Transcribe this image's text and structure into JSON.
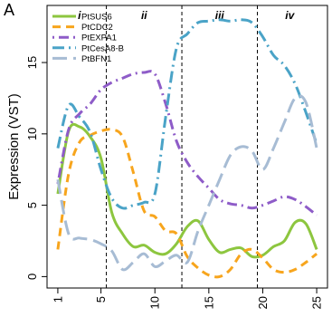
{
  "chart_data": {
    "type": "line",
    "panel_label": "A",
    "ylabel": "Expression (VST)",
    "xlim": [
      0,
      26
    ],
    "ylim": [
      -0.8,
      19
    ],
    "x_ticks": [
      1,
      5,
      10,
      15,
      20,
      25
    ],
    "y_ticks": [
      0,
      5,
      10,
      15
    ],
    "stage_boundaries": [
      5.5,
      12.5,
      19.5
    ],
    "stage_labels": [
      {
        "label": "i",
        "x": 3
      },
      {
        "label": "ii",
        "x": 9
      },
      {
        "label": "iii",
        "x": 16
      },
      {
        "label": "iv",
        "x": 22.5
      }
    ],
    "legend_position": "top-left",
    "x": [
      1,
      2,
      3,
      4,
      5,
      6,
      7,
      8,
      9,
      10,
      11,
      12,
      13,
      14,
      15,
      16,
      17,
      18,
      19,
      20,
      21,
      22,
      23,
      24,
      25
    ],
    "series": [
      {
        "name": "PtSUS6",
        "color": "#8dc63f",
        "dash": "solid",
        "values": [
          5.8,
          10.2,
          10.5,
          9.8,
          8.3,
          4.5,
          3.0,
          2.1,
          2.2,
          1.7,
          1.6,
          2.3,
          3.5,
          3.9,
          2.6,
          1.7,
          1.9,
          2.0,
          1.4,
          1.5,
          2.1,
          2.5,
          3.8,
          3.7,
          1.9
        ]
      },
      {
        "name": "PtCDC2",
        "color": "#f7a51d",
        "dash": "dashed",
        "values": [
          1.9,
          7.2,
          9.4,
          9.9,
          10.2,
          10.3,
          9.8,
          7.3,
          4.6,
          4.2,
          3.2,
          3.0,
          1.4,
          0.6,
          0.1,
          0.0,
          0.5,
          1.6,
          1.9,
          1.3,
          0.5,
          0.3,
          0.5,
          1.0,
          1.6
        ]
      },
      {
        "name": "PtEXPA1",
        "color": "#8e5cc8",
        "dash": "dotdash",
        "values": [
          6.5,
          10.3,
          11.4,
          12.1,
          13.1,
          13.6,
          13.9,
          14.2,
          14.3,
          14.2,
          12.1,
          9.5,
          8.0,
          7.0,
          6.2,
          5.4,
          5.1,
          5.0,
          4.8,
          5.0,
          5.3,
          5.6,
          5.4,
          4.9,
          4.3
        ]
      },
      {
        "name": "PtCesA8-B",
        "color": "#4aa3c7",
        "dash": "dashdot",
        "values": [
          9.0,
          12.0,
          11.2,
          10.1,
          7.5,
          5.5,
          4.8,
          5.0,
          5.2,
          5.8,
          11.2,
          16.0,
          17.0,
          17.8,
          17.9,
          18.0,
          17.9,
          18.0,
          17.8,
          16.8,
          15.5,
          14.8,
          13.5,
          11.5,
          9.3
        ]
      },
      {
        "name": "PtBFN1",
        "color": "#a7bcd4",
        "dash": "longdash",
        "values": [
          6.8,
          3.0,
          2.7,
          2.6,
          2.3,
          1.8,
          0.5,
          1.0,
          1.6,
          0.7,
          1.1,
          1.5,
          1.0,
          3.2,
          5.0,
          6.8,
          8.5,
          9.1,
          8.8,
          7.5,
          9.0,
          10.8,
          12.5,
          12.2,
          9.0
        ]
      }
    ]
  }
}
